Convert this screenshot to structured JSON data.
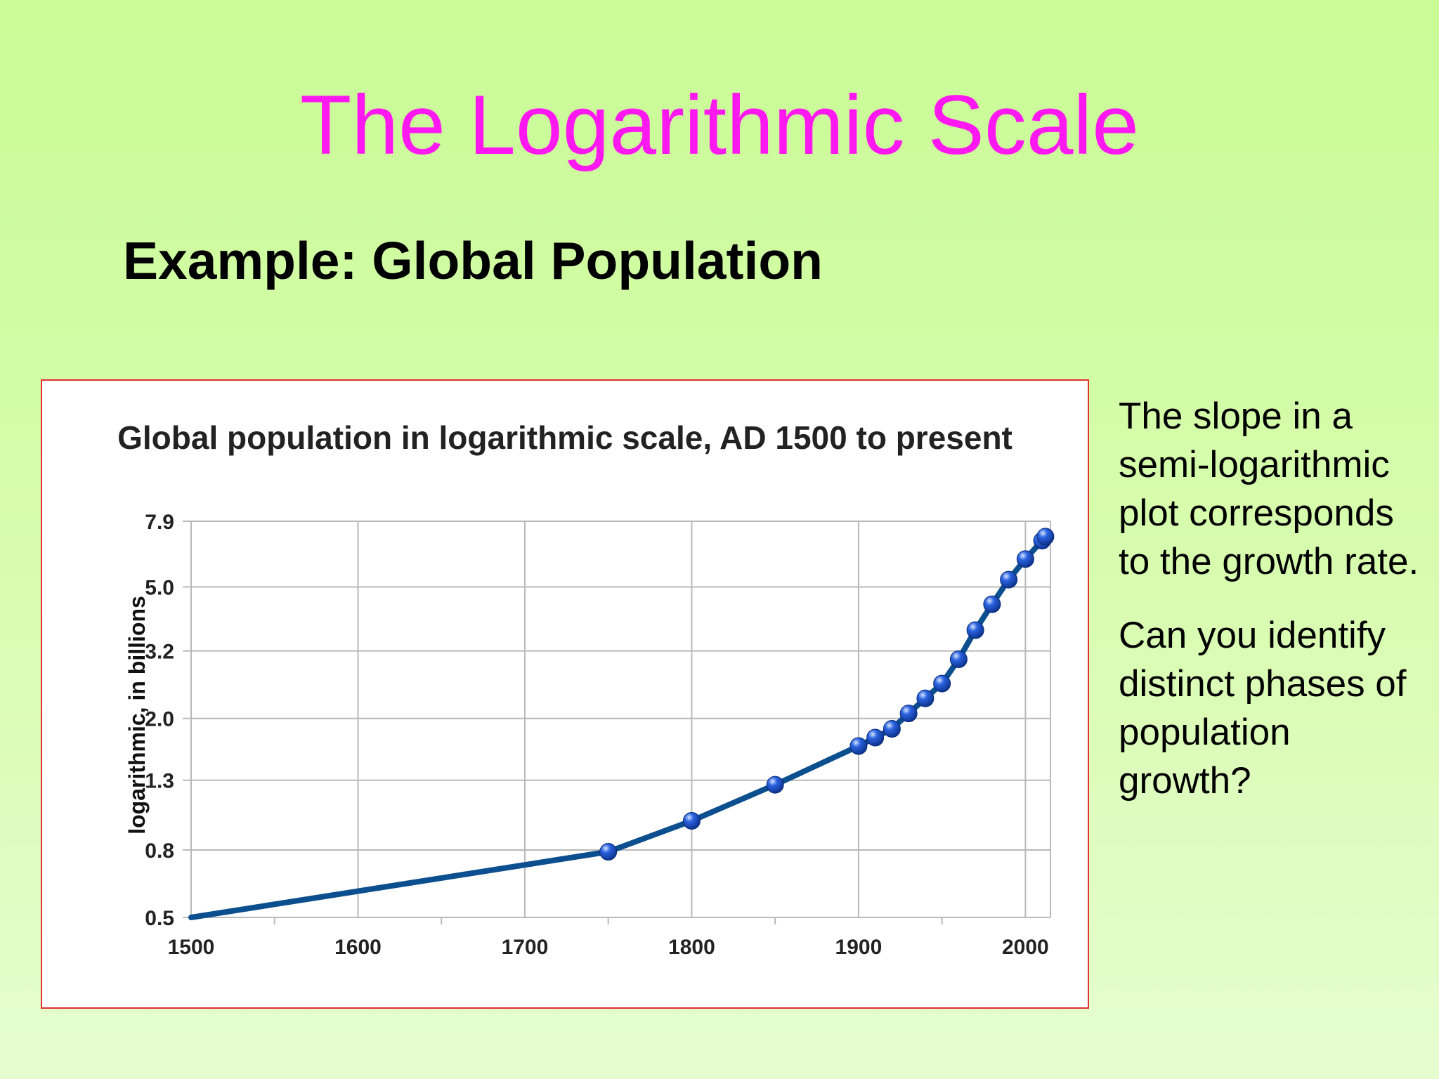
{
  "slide": {
    "title": "The Logarithmic Scale",
    "subtitle": "Example: Global Population",
    "side_text": [
      "The slope in a semi-logarithmic plot corresponds to the growth rate.",
      "Can you identify distinct phases of population growth?"
    ]
  },
  "colors": {
    "background": "#cdfb9c",
    "title": "#ff19f0",
    "line": "#0c4f8f",
    "marker": "#2a62e0",
    "frame_border": "#e03030"
  },
  "chart_data": {
    "type": "line",
    "title": "Global population in logarithmic scale, AD 1500 to present",
    "xlabel": "",
    "ylabel": "logarithmic, in billions",
    "yscale": "log",
    "xlim": [
      1500,
      2015
    ],
    "ylim": [
      0.5,
      7.9
    ],
    "x_ticks": [
      "1500",
      "1600",
      "1700",
      "1800",
      "1900",
      "2000"
    ],
    "y_ticks": [
      "0.5",
      "0.8",
      "1.3",
      "2.0",
      "3.2",
      "5.0",
      "7.9"
    ],
    "grid": true,
    "series": [
      {
        "x": [
          1500,
          1750,
          1800,
          1850,
          1900,
          1910,
          1920,
          1930,
          1940,
          1950,
          1960,
          1970,
          1980,
          1990,
          2000,
          2010,
          2012
        ],
        "y": [
          0.5,
          0.79,
          0.98,
          1.26,
          1.65,
          1.75,
          1.86,
          2.07,
          2.3,
          2.55,
          3.02,
          3.7,
          4.43,
          5.26,
          6.07,
          6.9,
          7.1
        ],
        "marked_from_index": 1
      }
    ]
  }
}
